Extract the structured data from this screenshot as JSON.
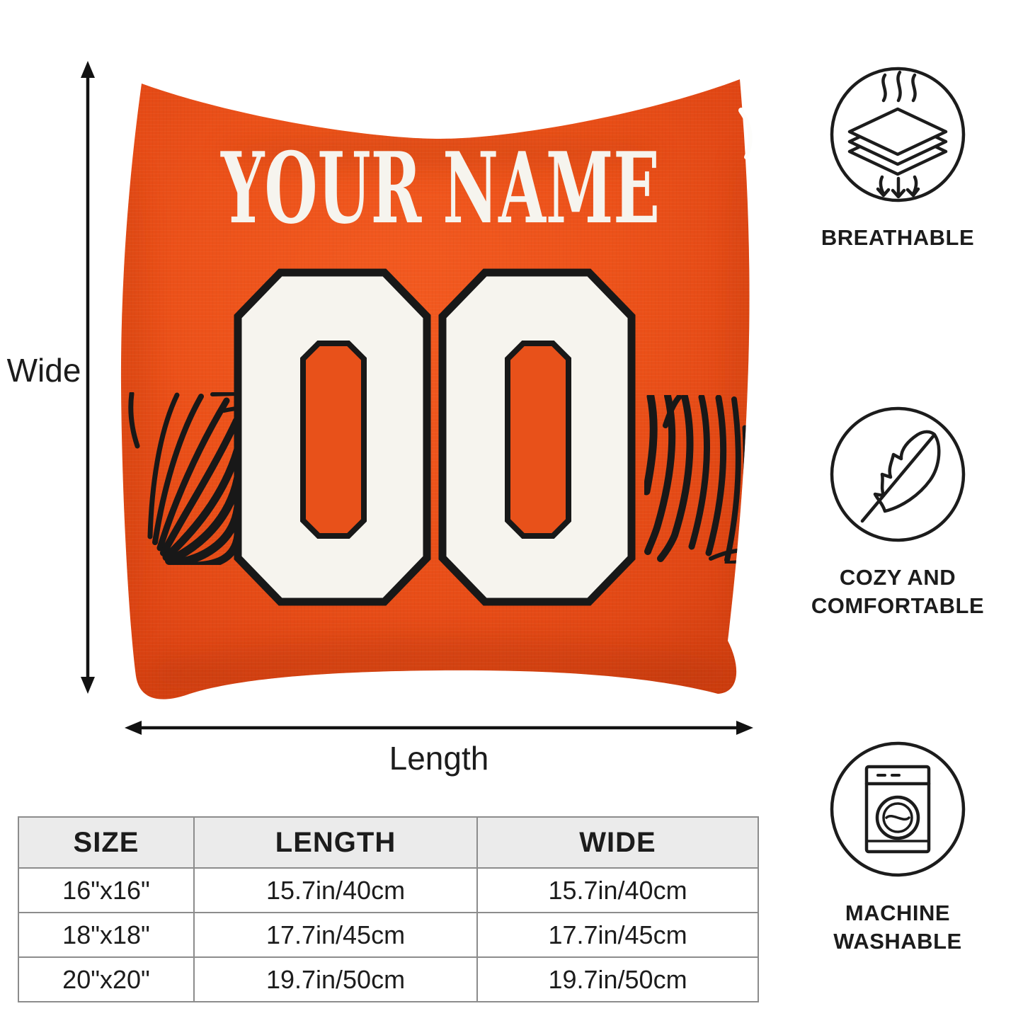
{
  "pillow": {
    "name": "YOUR NAME",
    "number": "00"
  },
  "dimensions": {
    "wide_label": "Wide",
    "length_label": "Length"
  },
  "features": [
    {
      "icon": "breathable-fabric-icon",
      "label": "BREATHABLE"
    },
    {
      "icon": "feather-icon",
      "label": "COZY AND COMFORTABLE"
    },
    {
      "icon": "washing-machine-icon",
      "label": "MACHINE WASHABLE"
    }
  ],
  "size_table": {
    "headers": [
      "SIZE",
      "LENGTH",
      "WIDE"
    ],
    "rows": [
      [
        "16\"x16\"",
        "15.7in/40cm",
        "15.7in/40cm"
      ],
      [
        "18\"x18\"",
        "17.7in/45cm",
        "17.7in/45cm"
      ],
      [
        "20\"x20\"",
        "19.7in/50cm",
        "19.7in/50cm"
      ]
    ]
  },
  "colors": {
    "pillow_orange": "#E8511A",
    "stripe_black": "#181818",
    "jersey_white": "#F6F4EE",
    "text_black": "#1C1C1C",
    "table_header_bg": "#EBEBEB",
    "table_border": "#8C8C8C"
  }
}
